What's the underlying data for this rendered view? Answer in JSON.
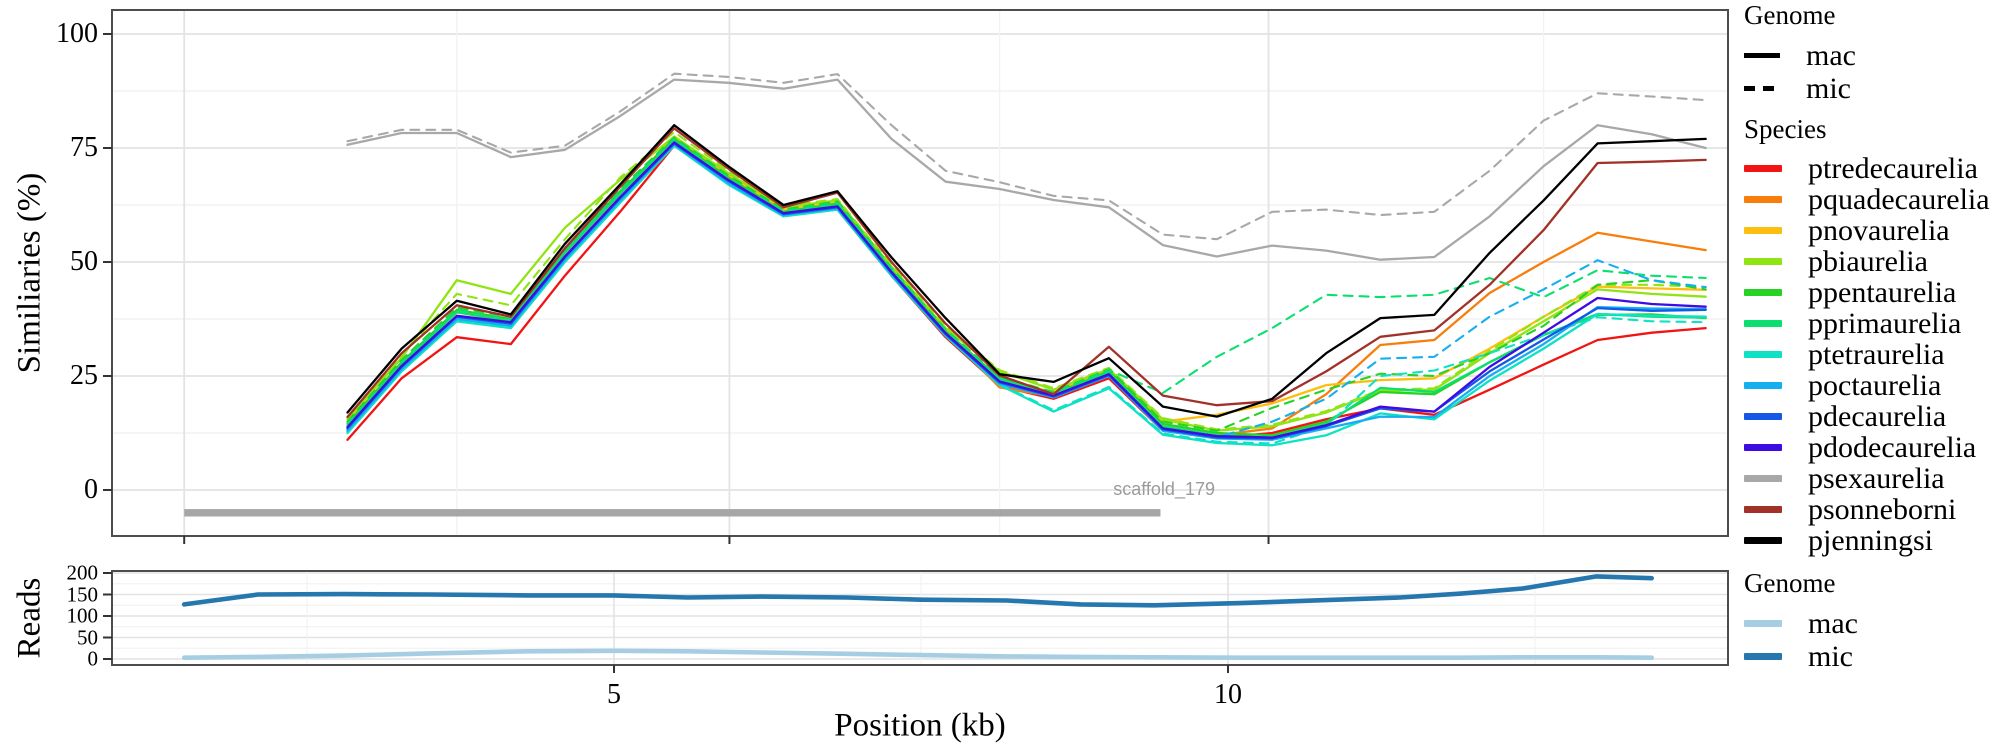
{
  "axes": {
    "main_ylabel": "Similiaries (%)",
    "reads_ylabel": "Reads",
    "xlabel": "Position (kb)"
  },
  "scaffold": {
    "label": "scaffold_179",
    "start_kb": 1.5,
    "end_kb": 9.45,
    "y_value": -5
  },
  "species": [
    {
      "label": "ptredecaurelia",
      "color": "#f21313"
    },
    {
      "label": "pquadecaurelia",
      "color": "#f87e0c"
    },
    {
      "label": "pnovaurelia",
      "color": "#fcbf0f"
    },
    {
      "label": "pbiaurelia",
      "color": "#90e414"
    },
    {
      "label": "ppentaurelia",
      "color": "#27d227"
    },
    {
      "label": "pprimaurelia",
      "color": "#0cdf70"
    },
    {
      "label": "ptetraurelia",
      "color": "#0fe2c4"
    },
    {
      "label": "poctaurelia",
      "color": "#15aff0"
    },
    {
      "label": "pdecaurelia",
      "color": "#1657e8"
    },
    {
      "label": "pdodecaurelia",
      "color": "#3d0ce4"
    },
    {
      "label": "psexaurelia",
      "color": "#a8a8a8"
    },
    {
      "label": "psonneborni",
      "color": "#a23129"
    },
    {
      "label": "pjenningsi",
      "color": "#000000"
    }
  ],
  "legend_genome_top": {
    "title": "Genome",
    "items": [
      {
        "label": "mac",
        "style": "solid"
      },
      {
        "label": "mic",
        "style": "dashed"
      }
    ]
  },
  "legend_species_title": "Species",
  "legend_genome_bottom": {
    "title": "Genome",
    "items": [
      {
        "label": "mac",
        "color": "#a6cee3"
      },
      {
        "label": "mic",
        "color": "#2577ae"
      }
    ]
  },
  "chart_data": [
    {
      "type": "line",
      "title": "",
      "xlabel": "Position (kb)",
      "ylabel": "Similiaries (%)",
      "ylim": [
        -10,
        105
      ],
      "xlim": [
        0.91,
        14.16
      ],
      "yticks": [
        0,
        25,
        50,
        75,
        100
      ],
      "yticks_minor": [
        12.5,
        37.5,
        62.5,
        87.5
      ],
      "xticks_kb": [
        1.5,
        5.94,
        10.33
      ],
      "xticks_minor_kb": [
        3.72,
        8.14,
        12.57
      ],
      "xtick_labels": [
        "",
        "",
        ""
      ],
      "grid": true,
      "legend_position": "right",
      "x": [
        2.83,
        3.27,
        3.72,
        4.16,
        4.6,
        5.05,
        5.49,
        5.93,
        6.38,
        6.82,
        7.26,
        7.7,
        8.14,
        8.58,
        9.03,
        9.47,
        9.91,
        10.36,
        10.8,
        11.24,
        11.68,
        12.13,
        12.57,
        13.01,
        13.45,
        13.89
      ],
      "series": [
        {
          "species": "ptredecaurelia",
          "genome": "mac",
          "values": [
            11,
            24.5,
            33.5,
            32,
            47,
            61,
            75.5,
            67.5,
            60.5,
            61.5,
            47,
            33.5,
            22.8,
            20,
            24.5,
            13,
            11.5,
            12.5,
            15.5,
            17.9,
            16.5,
            22,
            27.5,
            32.9,
            34.5,
            35.5
          ]
        },
        {
          "species": "pquadecaurelia",
          "genome": "mac",
          "values": [
            13.5,
            27,
            38,
            36.5,
            51,
            64,
            77,
            68.5,
            61,
            62.5,
            48,
            34.5,
            22.5,
            20.5,
            25.5,
            13.5,
            12,
            13.5,
            21,
            31.8,
            32.9,
            43.2,
            50,
            56.4,
            54.5,
            52.6
          ]
        },
        {
          "species": "pnovaurelia",
          "genome": "mac",
          "values": [
            14.8,
            28,
            39,
            37,
            52,
            65,
            77.5,
            69,
            61.5,
            63,
            48.5,
            35,
            24,
            21.5,
            26,
            15,
            16.5,
            19,
            23,
            24.1,
            24.5,
            31,
            38,
            44.6,
            44.2,
            43.9
          ]
        },
        {
          "species": "pbiaurelia",
          "genome": "mic",
          "values": [
            16,
            29.5,
            43,
            40.5,
            55,
            68.5,
            78.5,
            70,
            62.3,
            63.8,
            49.3,
            35.8,
            26.3,
            22.3,
            26.8,
            15.8,
            13.3,
            14.3,
            17.3,
            22,
            22.3,
            30.5,
            38,
            45,
            45,
            44.5
          ]
        },
        {
          "species": "pbiaurelia",
          "genome": "mac",
          "values": [
            15.5,
            29,
            46,
            43,
            57.5,
            68,
            77.5,
            69.5,
            62,
            63.5,
            49,
            35.5,
            26,
            22,
            26.5,
            15.5,
            13,
            14,
            17,
            21.8,
            22,
            30,
            37,
            44,
            43,
            42.4
          ]
        },
        {
          "species": "ppentaurelia",
          "genome": "mic",
          "values": [
            15,
            28.5,
            40,
            38,
            53,
            66,
            77.3,
            69,
            61.5,
            63.3,
            48.7,
            35.2,
            24.8,
            21.5,
            26.5,
            15,
            13,
            18,
            22,
            25.5,
            25,
            30,
            36,
            45,
            46,
            44
          ]
        },
        {
          "species": "ppentaurelia",
          "genome": "mac",
          "values": [
            14.5,
            28,
            39.5,
            37.5,
            52.5,
            65.5,
            77,
            68.5,
            61,
            62.8,
            48.2,
            34.8,
            24.5,
            21,
            26,
            14.5,
            12.5,
            12,
            15,
            21.5,
            21,
            28,
            34,
            38.4,
            38.5,
            37.7
          ]
        },
        {
          "species": "pprimaurelia",
          "genome": "mic",
          "values": [
            14.5,
            28,
            39.5,
            37.5,
            52.5,
            65.5,
            77,
            68.5,
            61.2,
            63,
            48.5,
            35,
            24.5,
            21.3,
            26.3,
            21.3,
            29.2,
            35.5,
            42.8,
            42.3,
            42.8,
            46.5,
            42.3,
            48.2,
            47,
            46.5
          ]
        },
        {
          "species": "pprimaurelia",
          "genome": "mac",
          "values": [
            14,
            27.5,
            39,
            37,
            52,
            65,
            76.5,
            68,
            60.8,
            62.5,
            48,
            34.5,
            24.3,
            20.8,
            25.8,
            14,
            12,
            11.5,
            14.5,
            22.4,
            21.5,
            28,
            34,
            38.6,
            38,
            37.8
          ]
        },
        {
          "species": "ptetraurelia",
          "genome": "mic",
          "values": [
            12.8,
            26.3,
            37.3,
            35.8,
            50.3,
            63.3,
            75.6,
            67.2,
            60.2,
            61.7,
            47.2,
            34,
            23.2,
            17.5,
            22.6,
            12.4,
            10.6,
            10.2,
            14,
            25,
            26.2,
            30,
            34,
            37.9,
            37,
            36.8
          ]
        },
        {
          "species": "ptetraurelia",
          "genome": "mac",
          "values": [
            12.5,
            26,
            37,
            35.5,
            50,
            63,
            75.5,
            67,
            60,
            61.5,
            47,
            33.8,
            23,
            17.2,
            22.3,
            12.1,
            10.3,
            9.8,
            12,
            16.8,
            15.5,
            24,
            31,
            38.6,
            38.2,
            38
          ]
        },
        {
          "species": "poctaurelia",
          "genome": "mic",
          "values": [
            13.3,
            27,
            38,
            36.3,
            51,
            64,
            76.3,
            67.6,
            60.6,
            62.1,
            47.6,
            34.3,
            23.5,
            20.6,
            25.3,
            13.5,
            11.6,
            15,
            20,
            28.8,
            29.2,
            38,
            44,
            50.4,
            46,
            44.5
          ]
        },
        {
          "species": "poctaurelia",
          "genome": "mac",
          "values": [
            13,
            26.5,
            37.5,
            36,
            50.5,
            63.5,
            75.8,
            67.3,
            60.3,
            61.8,
            47.3,
            34,
            23.3,
            20.3,
            25,
            13,
            11.3,
            11,
            13.5,
            16.1,
            16,
            25,
            32,
            40.1,
            39.8,
            39.7
          ]
        },
        {
          "species": "pdecaurelia",
          "genome": "mac",
          "values": [
            13.5,
            27,
            38,
            36.5,
            51,
            64,
            76,
            67.8,
            60.5,
            62,
            47.6,
            34.2,
            23.6,
            20.5,
            25.2,
            13.3,
            11.5,
            11.3,
            14,
            17.9,
            17.2,
            26,
            33,
            39.9,
            39.3,
            39.5
          ]
        },
        {
          "species": "pdodecaurelia",
          "genome": "mac",
          "values": [
            13.8,
            27.2,
            38.2,
            36.8,
            51.2,
            64.2,
            76.2,
            68,
            60.7,
            62.2,
            47.8,
            34.4,
            23.8,
            20.7,
            25.4,
            13.5,
            11.8,
            11.5,
            14.2,
            18.3,
            17.2,
            27,
            34.5,
            42.1,
            40.8,
            40.2
          ]
        },
        {
          "species": "psexaurelia",
          "genome": "mic",
          "values": [
            76.5,
            79,
            79,
            74,
            75.5,
            83,
            91.3,
            90.6,
            89.3,
            91.2,
            80,
            70,
            67.5,
            64.5,
            63.5,
            56,
            55,
            61,
            61.5,
            60.3,
            61,
            70,
            81,
            87,
            86.3,
            85.5
          ]
        },
        {
          "species": "psexaurelia",
          "genome": "mac",
          "values": [
            75.7,
            78.3,
            78.3,
            73,
            74.6,
            82,
            90,
            89.3,
            88,
            90,
            77,
            67.6,
            66,
            63.6,
            62,
            53.7,
            51.2,
            53.6,
            52.5,
            50.5,
            51.1,
            60,
            71,
            80,
            78,
            75
          ]
        },
        {
          "species": "psonneborni",
          "genome": "mac",
          "values": [
            16,
            30,
            40.5,
            38,
            53,
            66.5,
            79.3,
            70.5,
            62,
            65.2,
            50,
            36.5,
            25.1,
            21,
            31.4,
            20.7,
            18.6,
            19.5,
            26,
            33.6,
            35,
            45,
            57,
            71.7,
            72,
            72.4
          ]
        },
        {
          "species": "pjenningsi",
          "genome": "mac",
          "values": [
            17,
            31,
            41.5,
            38.5,
            54,
            67,
            80,
            71,
            62.5,
            65.5,
            51,
            37.7,
            25.4,
            23.7,
            28.9,
            18.3,
            16.1,
            20,
            30,
            37.7,
            38.4,
            52,
            63.5,
            76,
            76.5,
            77
          ]
        }
      ]
    },
    {
      "type": "line",
      "title": "",
      "xlabel": "Position (kb)",
      "ylabel": "Reads",
      "ylim": [
        -14,
        204
      ],
      "yticks": [
        0,
        50,
        100,
        150,
        200
      ],
      "yticks_minor": [
        25,
        75,
        125,
        175
      ],
      "xticks_kb": [
        5,
        10
      ],
      "xtick_labels": [
        "5",
        "10"
      ],
      "xticks_minor_kb": [
        2.5,
        7.5,
        12.5
      ],
      "grid": true,
      "legend_position": "right",
      "x": [
        1.5,
        2.1,
        2.8,
        3.5,
        4.3,
        5.0,
        5.6,
        6.2,
        6.9,
        7.5,
        8.2,
        8.8,
        9.4,
        10.1,
        10.8,
        11.4,
        11.9,
        12.4,
        13.0,
        13.45
      ],
      "series": [
        {
          "genome": "mac",
          "color": "#a6cee3",
          "values": [
            3,
            5,
            8,
            13,
            18,
            19,
            18,
            15,
            12,
            9,
            6,
            5,
            4,
            3,
            3,
            3,
            3,
            4,
            4,
            3
          ]
        },
        {
          "genome": "mic",
          "color": "#2577ae",
          "values": [
            127,
            150,
            151,
            150,
            148,
            148,
            143,
            145,
            143,
            138,
            136,
            127,
            125,
            130,
            137,
            143,
            152,
            164,
            192,
            188
          ]
        }
      ]
    }
  ]
}
